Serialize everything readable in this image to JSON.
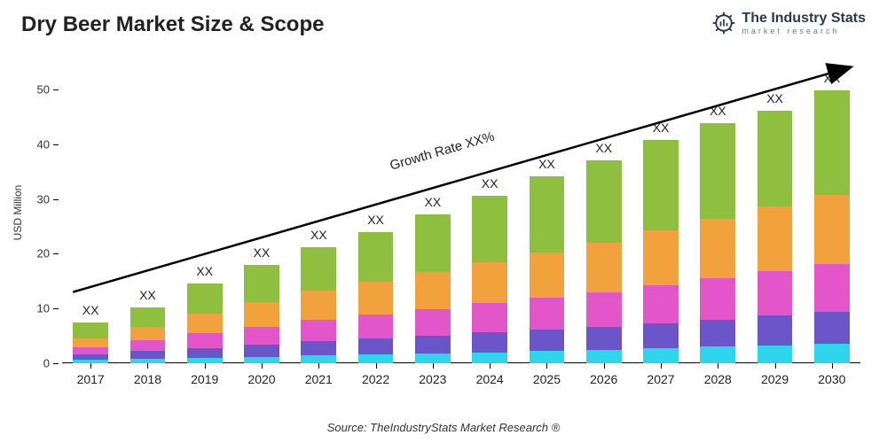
{
  "title": "Dry Beer Market Size & Scope",
  "logo": {
    "main": "The Industry Stats",
    "sub": "market research",
    "icon_stroke": "#2a3a4a"
  },
  "chart": {
    "type": "stacked-bar",
    "y_label": "USD Million",
    "ylim": [
      0,
      55
    ],
    "ytick_step": 10,
    "yticks": [
      0,
      10,
      20,
      30,
      40,
      50
    ],
    "x_categories": [
      "2017",
      "2018",
      "2019",
      "2020",
      "2021",
      "2022",
      "2023",
      "2024",
      "2025",
      "2026",
      "2027",
      "2028",
      "2029",
      "2030"
    ],
    "bar_labels": [
      "XX",
      "XX",
      "XX",
      "XX",
      "XX",
      "XX",
      "XX",
      "XX",
      "XX",
      "XX",
      "XX",
      "XX",
      "XX",
      "XX"
    ],
    "segment_colors": [
      "#2fd5ea",
      "#6a56c9",
      "#e356c9",
      "#f2a23c",
      "#8fbf3f"
    ],
    "series": [
      [
        0.6,
        1.0,
        1.3,
        1.6,
        3.0
      ],
      [
        0.8,
        1.4,
        2.0,
        2.5,
        3.5
      ],
      [
        1.0,
        1.8,
        2.7,
        3.5,
        5.5
      ],
      [
        1.2,
        2.2,
        3.3,
        4.5,
        6.8
      ],
      [
        1.4,
        2.6,
        3.9,
        5.3,
        8.0
      ],
      [
        1.6,
        2.9,
        4.4,
        6.0,
        9.0
      ],
      [
        1.8,
        3.2,
        4.9,
        6.8,
        10.5
      ],
      [
        2.0,
        3.6,
        5.4,
        7.5,
        12.0
      ],
      [
        2.2,
        3.9,
        5.9,
        8.3,
        13.8
      ],
      [
        2.4,
        4.2,
        6.4,
        9.0,
        15.0
      ],
      [
        2.7,
        4.6,
        7.0,
        9.9,
        16.5
      ],
      [
        3.0,
        5.0,
        7.6,
        10.8,
        17.5
      ],
      [
        3.3,
        5.4,
        8.2,
        11.7,
        17.5
      ],
      [
        3.6,
        5.8,
        8.8,
        12.6,
        19.0
      ]
    ],
    "bar_width_ratio": 0.62,
    "background_color": "#ffffff",
    "axis_color": "#000000",
    "label_fontsize": 14,
    "growth_arrow": {
      "text": "Growth Rate XX%",
      "start": {
        "cat_index": 0,
        "y": 13
      },
      "end": {
        "cat_index": 13,
        "y": 54
      },
      "stroke": "#000000",
      "stroke_width": 2.5
    }
  },
  "source": "Source: TheIndustryStats Market Research ®"
}
